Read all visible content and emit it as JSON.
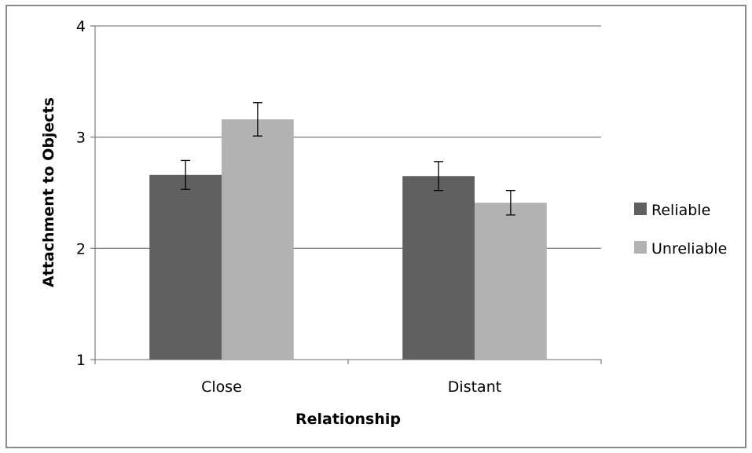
{
  "chart_data": {
    "type": "bar",
    "categories": [
      "Close",
      "Distant"
    ],
    "series": [
      {
        "name": "Reliable",
        "values": [
          2.66,
          2.65
        ],
        "errors": [
          0.13,
          0.13
        ],
        "color": "#606060"
      },
      {
        "name": "Unreliable",
        "values": [
          3.16,
          2.41
        ],
        "errors": [
          0.15,
          0.11
        ],
        "color": "#b2b2b2"
      }
    ],
    "title": "",
    "xlabel": "Relationship",
    "ylabel": "Attachment to Objects",
    "ylim": [
      1,
      4
    ],
    "yticks": [
      "1",
      "2",
      "3",
      "4"
    ],
    "grid": true,
    "legend_position": "right"
  }
}
